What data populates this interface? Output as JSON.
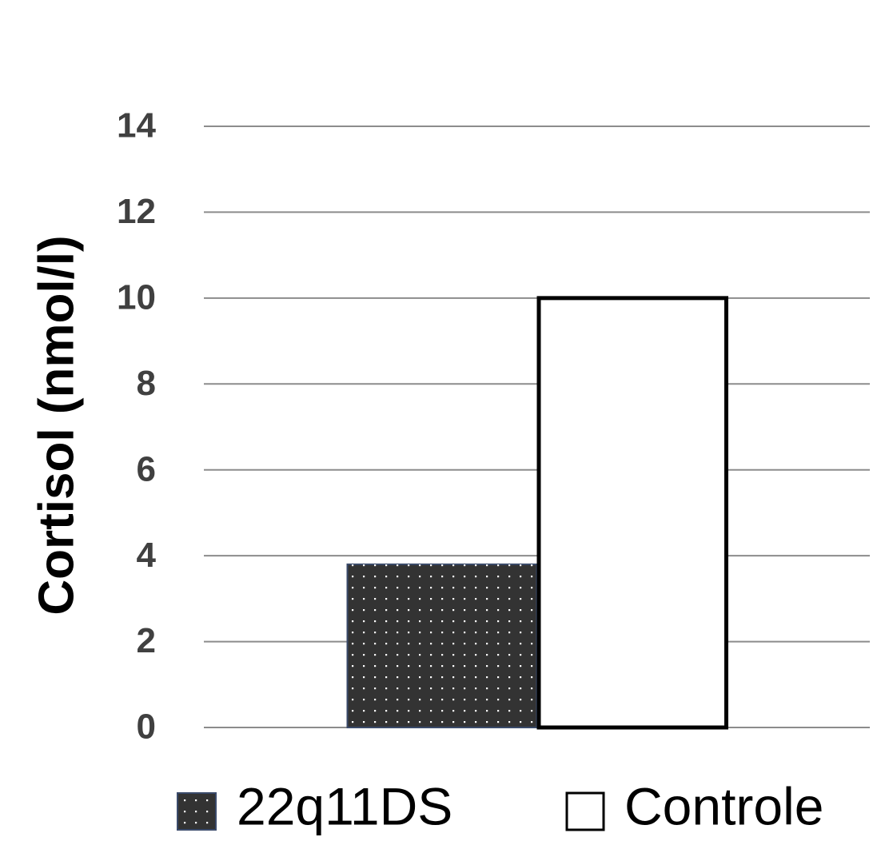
{
  "chart_data": {
    "type": "bar",
    "y_label": "Cortisol (nmol/l)",
    "categories": [
      null
    ],
    "series": [
      {
        "name": "22q11DS",
        "color": "#333333",
        "edge_color": "#3a4a6a",
        "pattern": "dots",
        "values": [
          3.8
        ]
      },
      {
        "name": "Controle",
        "color": "#ffffff",
        "edge_color": "#000000",
        "values": [
          10
        ]
      }
    ],
    "ylim": [
      0,
      14
    ],
    "yticks": [
      0,
      2,
      4,
      6,
      8,
      10,
      12,
      14
    ],
    "grid": true,
    "legend": "bottom"
  }
}
